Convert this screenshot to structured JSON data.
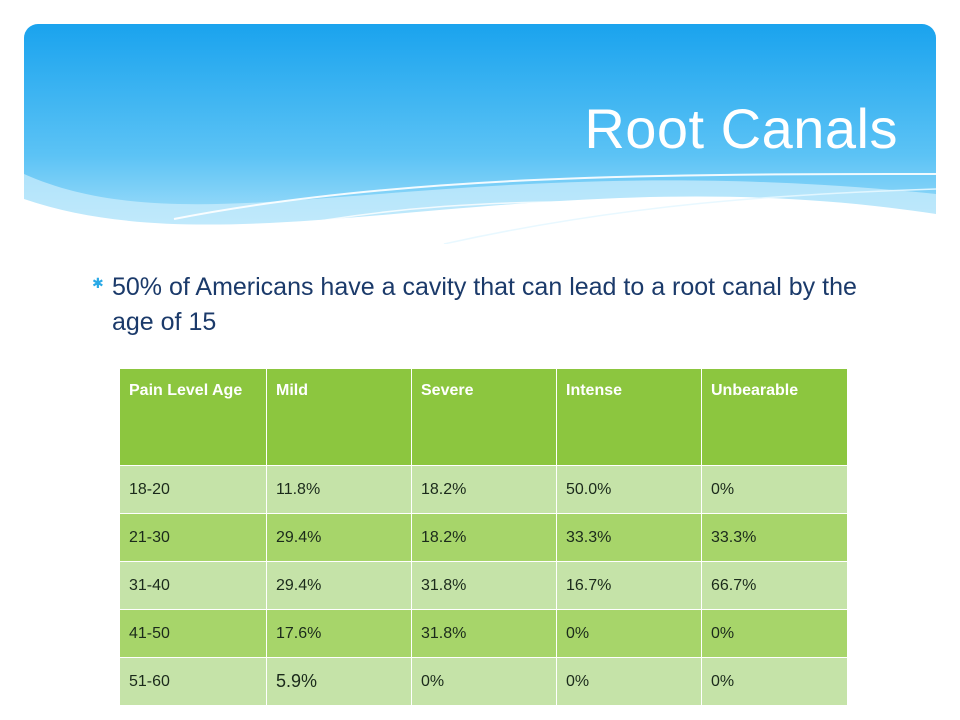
{
  "slide": {
    "title": "Root Canals",
    "bullet": "50% of Americans have a cavity that can lead to a root canal by the age of 15"
  },
  "table": {
    "headers": [
      "Pain Level Age",
      "Mild",
      "Severe",
      "Intense",
      "Unbearable"
    ],
    "rows": [
      [
        "18-20",
        "11.8%",
        "18.2%",
        "50.0%",
        "0%"
      ],
      [
        "21-30",
        "29.4%",
        "18.2%",
        "33.3%",
        "33.3%"
      ],
      [
        "31-40",
        "29.4%",
        "31.8%",
        "16.7%",
        "66.7%"
      ],
      [
        "41-50",
        "17.6%",
        "31.8%",
        "0%",
        "0%"
      ],
      [
        "51-60",
        "5.9%",
        "0%",
        "0%",
        "0%"
      ]
    ]
  },
  "colors": {
    "banner_top": "#1aa3ee",
    "banner_bottom": "#a9e2fb",
    "header_green": "#8cc63f",
    "row_light": "#c5e3a8",
    "row_dark": "#a7d56a"
  }
}
